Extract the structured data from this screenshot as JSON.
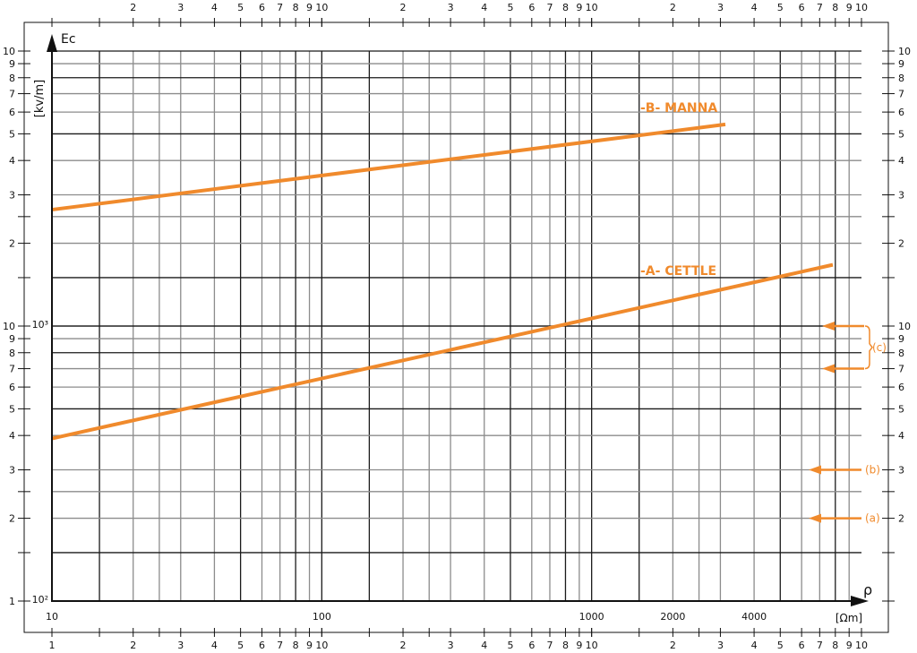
{
  "chart_data": {
    "type": "line",
    "x_scale": "log",
    "y_scale": "log",
    "xlim": [
      10,
      10000
    ],
    "ylim": [
      100,
      10000
    ],
    "grid": true,
    "xlabel": "ρ",
    "xunit": "[Ωm]",
    "ylabel": "Ec",
    "yunit": "[kv/m]",
    "x_inner_ticks": [
      {
        "v": 10,
        "t": "10"
      },
      {
        "v": 100,
        "t": "100"
      },
      {
        "v": 1000,
        "t": "1000"
      },
      {
        "v": 2000,
        "t": "2000"
      },
      {
        "v": 4000,
        "t": "4000"
      }
    ],
    "y_inner_ticks": [
      {
        "v": 100,
        "t": "10²"
      },
      {
        "v": 1000,
        "t": "10³"
      }
    ],
    "decade_tick_labels": [
      "1",
      "2",
      "3",
      "4",
      "5",
      "6",
      "7",
      "8",
      "9",
      "10"
    ],
    "series": [
      {
        "name": "-B- MANNA",
        "color": "#f08a2c",
        "x": [
          10,
          3130
        ],
        "y": [
          2650,
          5410
        ]
      },
      {
        "name": "-A- CETTLE",
        "color": "#f08a2c",
        "x": [
          10,
          7830
        ],
        "y": [
          390,
          1670
        ]
      }
    ],
    "annotations": [
      {
        "label": "(c)",
        "y": [
          1000,
          700
        ]
      },
      {
        "label": "(b)",
        "y": [
          300
        ]
      },
      {
        "label": "(a)",
        "y": [
          200
        ]
      }
    ],
    "colors": {
      "series": "#f08a2c",
      "grid_dark": "#1a1a1a",
      "grid_light": "#8c8c8c"
    }
  }
}
